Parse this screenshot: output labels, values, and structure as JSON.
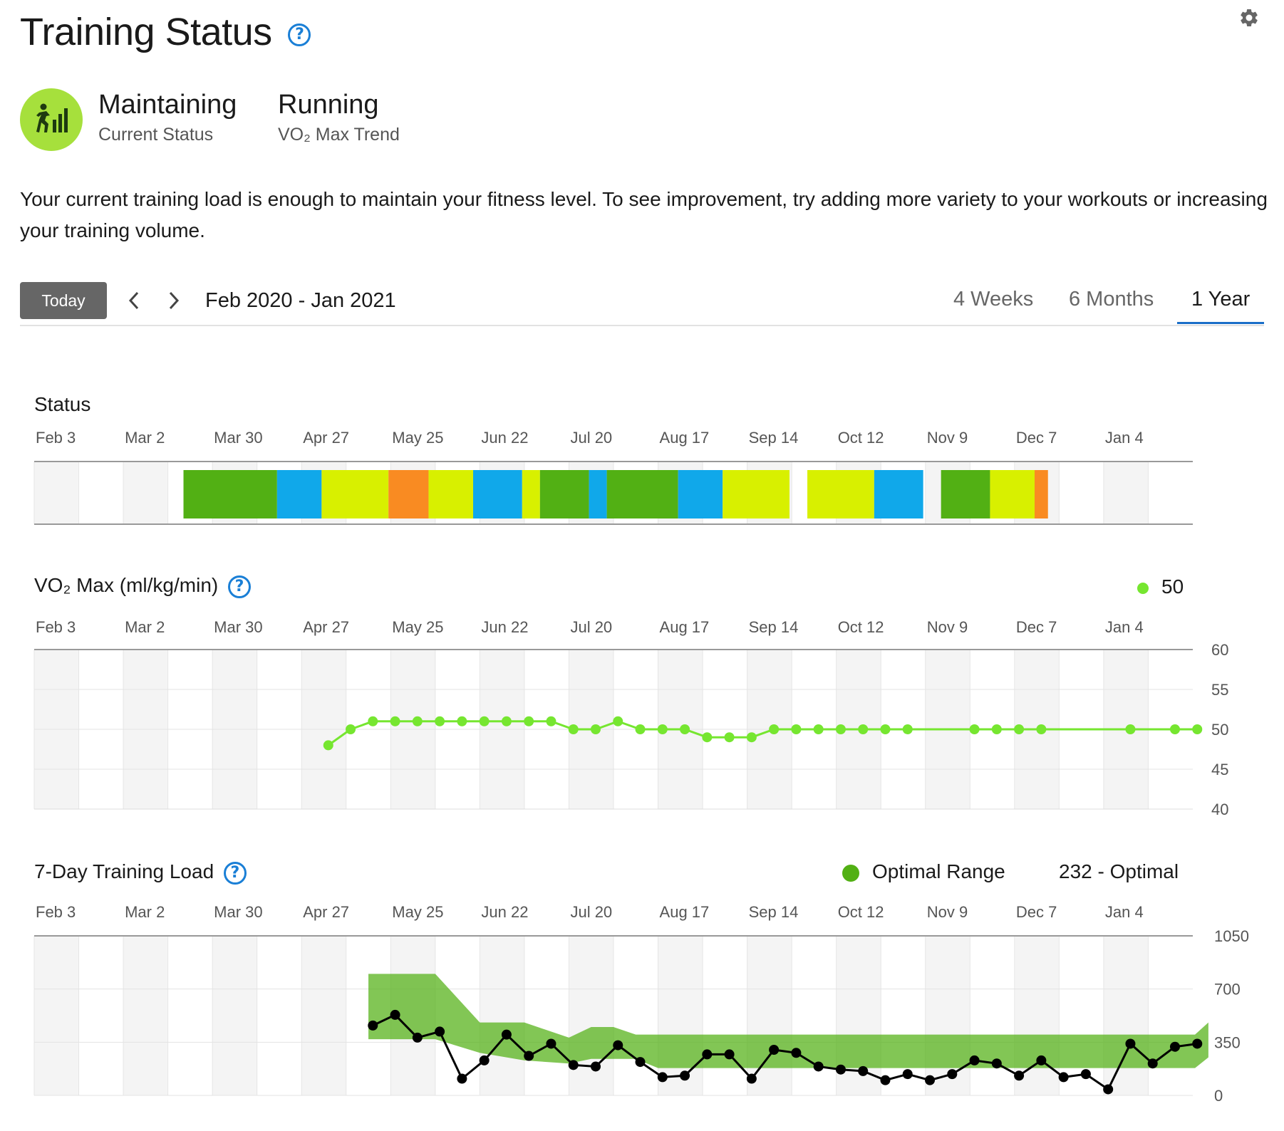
{
  "page": {
    "title": "Training Status",
    "status_value": "Maintaining",
    "status_label": "Current Status",
    "sport_value": "Running",
    "sport_label": "VO₂ Max Trend",
    "description": "Your current training load is enough to maintain your fitness level. To see improvement, try adding more variety to your workouts or increasing your training volume.",
    "icons": {
      "help": "help-icon",
      "settings": "gear-icon",
      "status": "runner-bars-icon",
      "prev": "chevron-left-icon",
      "next": "chevron-right-icon"
    }
  },
  "nav": {
    "today_label": "Today",
    "range_label": "Feb 2020 - Jan 2021",
    "periods": [
      "4 Weeks",
      "6 Months",
      "1 Year"
    ],
    "active_period": "1 Year"
  },
  "colors": {
    "productive": "#52b014",
    "recovery": "#10a8ea",
    "maintaining": "#d8f000",
    "unproductive": "#f98b22",
    "vo2_line": "#76e630",
    "optimal_range": "#52b014",
    "load_line": "#000000",
    "accent": "#1a6ec8"
  },
  "chart_data": [
    {
      "type": "bar",
      "title": "Status",
      "x_ticks": [
        "Feb 3",
        "Mar 2",
        "Mar 30",
        "Apr 27",
        "May 25",
        "Jun 22",
        "Jul 20",
        "Aug 17",
        "Sep 14",
        "Oct 12",
        "Nov 9",
        "Dec 7",
        "Jan 4"
      ],
      "segments": [
        {
          "start_week": 6.7,
          "end_week": 10.9,
          "color": "productive"
        },
        {
          "start_week": 10.9,
          "end_week": 12.9,
          "color": "recovery"
        },
        {
          "start_week": 12.9,
          "end_week": 15.9,
          "color": "maintaining"
        },
        {
          "start_week": 15.9,
          "end_week": 17.7,
          "color": "unproductive"
        },
        {
          "start_week": 17.7,
          "end_week": 19.7,
          "color": "maintaining"
        },
        {
          "start_week": 19.7,
          "end_week": 21.9,
          "color": "recovery"
        },
        {
          "start_week": 21.9,
          "end_week": 22.7,
          "color": "maintaining"
        },
        {
          "start_week": 22.7,
          "end_week": 24.9,
          "color": "productive"
        },
        {
          "start_week": 24.9,
          "end_week": 25.7,
          "color": "recovery"
        },
        {
          "start_week": 25.7,
          "end_week": 28.9,
          "color": "productive"
        },
        {
          "start_week": 28.9,
          "end_week": 30.9,
          "color": "recovery"
        },
        {
          "start_week": 30.9,
          "end_week": 33.9,
          "color": "maintaining"
        },
        {
          "start_week": 34.7,
          "end_week": 37.7,
          "color": "maintaining"
        },
        {
          "start_week": 37.7,
          "end_week": 39.9,
          "color": "recovery"
        },
        {
          "start_week": 40.7,
          "end_week": 42.9,
          "color": "productive"
        },
        {
          "start_week": 42.9,
          "end_week": 44.9,
          "color": "maintaining"
        },
        {
          "start_week": 44.9,
          "end_week": 45.5,
          "color": "unproductive"
        }
      ]
    },
    {
      "type": "line",
      "title": "VO₂ Max (ml/kg/min)",
      "legend_value": "50",
      "y_ticks": [
        "60",
        "55",
        "50",
        "45",
        "40"
      ],
      "ylim": [
        40,
        60
      ],
      "x_ticks": [
        "Feb 3",
        "Mar 2",
        "Mar 30",
        "Apr 27",
        "May 25",
        "Jun 22",
        "Jul 20",
        "Aug 17",
        "Sep 14",
        "Oct 12",
        "Nov 9",
        "Dec 7",
        "Jan 4"
      ],
      "points": [
        [
          13.2,
          48
        ],
        [
          14.2,
          50
        ],
        [
          15.2,
          51
        ],
        [
          16.2,
          51
        ],
        [
          17.2,
          51
        ],
        [
          18.2,
          51
        ],
        [
          19.2,
          51
        ],
        [
          20.2,
          51
        ],
        [
          21.2,
          51
        ],
        [
          22.2,
          51
        ],
        [
          23.2,
          51
        ],
        [
          24.2,
          50
        ],
        [
          25.2,
          50
        ],
        [
          26.2,
          51
        ],
        [
          27.2,
          50
        ],
        [
          28.2,
          50
        ],
        [
          29.2,
          50
        ],
        [
          30.2,
          49
        ],
        [
          31.2,
          49
        ],
        [
          32.2,
          49
        ],
        [
          33.2,
          50
        ],
        [
          34.2,
          50
        ],
        [
          35.2,
          50
        ],
        [
          36.2,
          50
        ],
        [
          37.2,
          50
        ],
        [
          38.2,
          50
        ],
        [
          39.2,
          50
        ],
        [
          42.2,
          50
        ],
        [
          43.2,
          50
        ],
        [
          44.2,
          50
        ],
        [
          45.2,
          50
        ],
        [
          49.2,
          50
        ],
        [
          51.2,
          50
        ],
        [
          52.2,
          50
        ]
      ]
    },
    {
      "type": "area",
      "title": "7-Day Training Load",
      "legend_label": "Optimal Range",
      "current_value": "232 - Optimal",
      "y_ticks": [
        "1050",
        "700",
        "350",
        "0"
      ],
      "ylim": [
        0,
        1050
      ],
      "x_ticks": [
        "Feb 3",
        "Mar 2",
        "Mar 30",
        "Apr 27",
        "May 25",
        "Jun 22",
        "Jul 20",
        "Aug 17",
        "Sep 14",
        "Oct 12",
        "Nov 9",
        "Dec 7",
        "Jan 4"
      ],
      "optimal_range": [
        [
          15,
          800,
          370
        ],
        [
          18,
          800,
          370
        ],
        [
          20,
          480,
          280
        ],
        [
          22,
          480,
          230
        ],
        [
          24,
          380,
          210
        ],
        [
          25,
          450,
          240
        ],
        [
          26,
          450,
          240
        ],
        [
          27,
          400,
          240
        ],
        [
          28,
          400,
          180
        ],
        [
          30,
          400,
          180
        ],
        [
          35,
          400,
          180
        ],
        [
          40,
          400,
          180
        ],
        [
          45,
          400,
          180
        ],
        [
          50,
          400,
          180
        ],
        [
          52.1,
          400,
          180
        ],
        [
          52.7,
          480,
          250
        ]
      ],
      "load": [
        [
          15.2,
          460
        ],
        [
          16.2,
          530
        ],
        [
          17.2,
          380
        ],
        [
          18.2,
          420
        ],
        [
          19.2,
          110
        ],
        [
          20.2,
          230
        ],
        [
          21.2,
          400
        ],
        [
          22.2,
          260
        ],
        [
          23.2,
          340
        ],
        [
          24.2,
          200
        ],
        [
          25.2,
          190
        ],
        [
          26.2,
          330
        ],
        [
          27.2,
          220
        ],
        [
          28.2,
          120
        ],
        [
          29.2,
          130
        ],
        [
          30.2,
          270
        ],
        [
          31.2,
          270
        ],
        [
          32.2,
          110
        ],
        [
          33.2,
          300
        ],
        [
          34.2,
          280
        ],
        [
          35.2,
          190
        ],
        [
          36.2,
          170
        ],
        [
          37.2,
          160
        ],
        [
          38.2,
          100
        ],
        [
          39.2,
          140
        ],
        [
          40.2,
          100
        ],
        [
          41.2,
          140
        ],
        [
          42.2,
          230
        ],
        [
          43.2,
          210
        ],
        [
          44.2,
          130
        ],
        [
          45.2,
          230
        ],
        [
          46.2,
          120
        ],
        [
          47.2,
          140
        ],
        [
          48.2,
          40
        ],
        [
          49.2,
          340
        ],
        [
          50.2,
          210
        ],
        [
          51.2,
          320
        ],
        [
          52.2,
          340
        ]
      ]
    }
  ]
}
